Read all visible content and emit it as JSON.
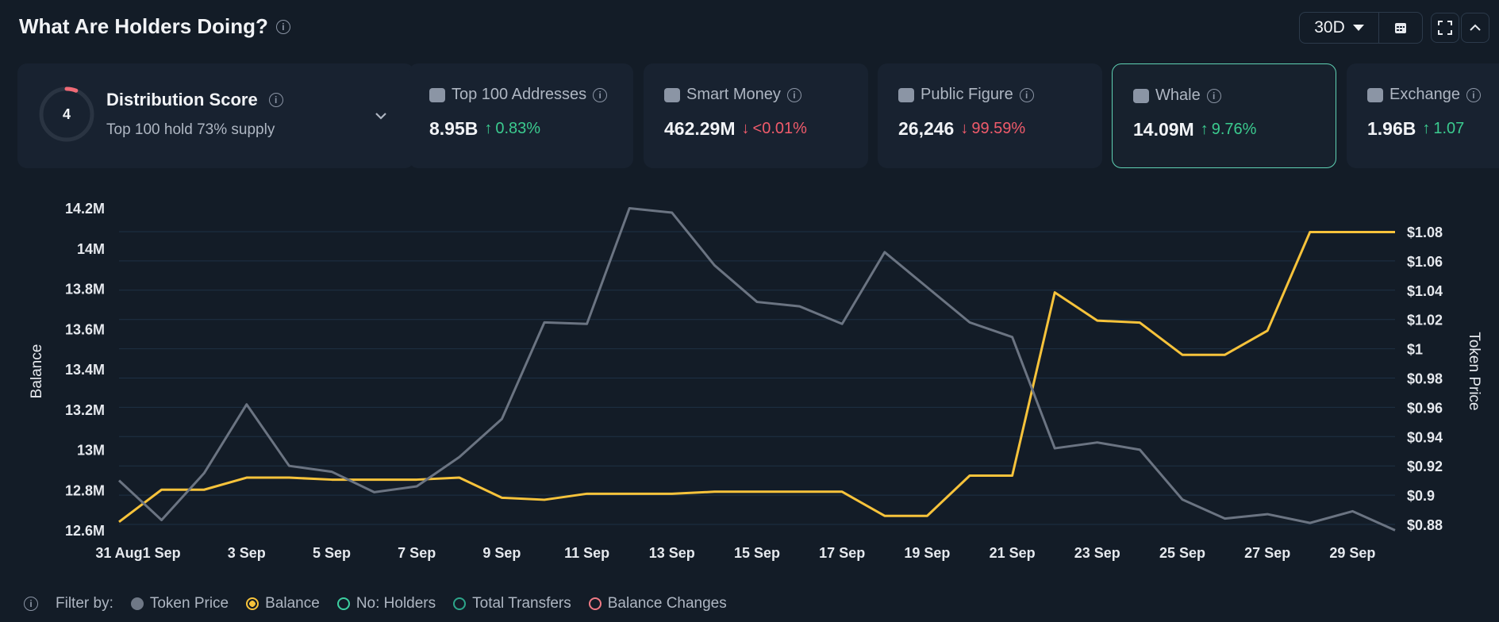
{
  "header": {
    "title": "What Are Holders Doing?"
  },
  "controls": {
    "period": "30D"
  },
  "distribution": {
    "score": "4",
    "score_fraction": 0.4,
    "title": "Distribution Score",
    "subtitle": "Top 100 hold 73% supply"
  },
  "cards": [
    {
      "label": "Top 100 Addresses",
      "value": "8.95B",
      "delta": "0.83%",
      "dir": "up",
      "icon": "cash-icon"
    },
    {
      "label": "Smart Money",
      "value": "462.29M",
      "delta": "<0.01%",
      "dir": "down",
      "icon": "sunglasses-icon"
    },
    {
      "label": "Public Figure",
      "value": "26,246",
      "delta": "99.59%",
      "dir": "down",
      "icon": "person-icon"
    },
    {
      "label": "Whale",
      "value": "14.09M",
      "delta": "9.76%",
      "dir": "up",
      "icon": "whale-icon"
    },
    {
      "label": "Exchange",
      "value": "1.96B",
      "delta": "1.07",
      "dir": "up",
      "icon": "bank-icon"
    }
  ],
  "legend": {
    "filter_label": "Filter by:",
    "items": [
      {
        "label": "Token Price",
        "color": "#6f7886",
        "style": "filled"
      },
      {
        "label": "Balance",
        "color": "#f7c33b",
        "style": "ring-filled"
      },
      {
        "label": "No: Holders",
        "color": "#3ccfa0",
        "style": "ring"
      },
      {
        "label": "Total Transfers",
        "color": "#2da58a",
        "style": "ring"
      },
      {
        "label": "Balance Changes",
        "color": "#f07a85",
        "style": "ring"
      }
    ]
  },
  "chart_data": {
    "type": "line",
    "x": [
      "31 Aug",
      "1 Sep",
      "2 Sep",
      "3 Sep",
      "4 Sep",
      "5 Sep",
      "6 Sep",
      "7 Sep",
      "8 Sep",
      "9 Sep",
      "10 Sep",
      "11 Sep",
      "12 Sep",
      "13 Sep",
      "14 Sep",
      "15 Sep",
      "16 Sep",
      "17 Sep",
      "18 Sep",
      "19 Sep",
      "20 Sep",
      "21 Sep",
      "22 Sep",
      "23 Sep",
      "24 Sep",
      "25 Sep",
      "26 Sep",
      "27 Sep",
      "28 Sep",
      "29 Sep",
      "30 Sep"
    ],
    "xtick_labels": [
      "31 Aug",
      "1 Sep",
      "3 Sep",
      "5 Sep",
      "7 Sep",
      "9 Sep",
      "11 Sep",
      "13 Sep",
      "15 Sep",
      "17 Sep",
      "19 Sep",
      "21 Sep",
      "23 Sep",
      "25 Sep",
      "27 Sep",
      "29 Sep"
    ],
    "series": [
      {
        "name": "Balance",
        "axis": "left",
        "color": "#f7c33b",
        "values": [
          12.64,
          12.8,
          12.8,
          12.86,
          12.86,
          12.85,
          12.85,
          12.85,
          12.86,
          12.76,
          12.75,
          12.78,
          12.78,
          12.78,
          12.79,
          12.79,
          12.79,
          12.79,
          12.67,
          12.67,
          12.87,
          12.87,
          13.78,
          13.64,
          13.63,
          13.47,
          13.47,
          13.59,
          14.08,
          14.08,
          14.08
        ]
      },
      {
        "name": "Token Price",
        "axis": "right",
        "color": "#6b7482",
        "values": [
          0.91,
          0.883,
          0.915,
          0.962,
          0.92,
          0.916,
          0.902,
          0.906,
          0.926,
          0.952,
          1.018,
          1.017,
          1.096,
          1.093,
          1.057,
          1.032,
          1.029,
          1.017,
          1.066,
          1.042,
          1.018,
          1.008,
          0.932,
          0.936,
          0.931,
          0.897,
          0.884,
          0.887,
          0.881,
          0.889,
          0.876
        ]
      }
    ],
    "ylabel": "Balance",
    "ylabel_right": "Token Price",
    "yticks_left": [
      "12.6M",
      "12.8M",
      "13M",
      "13.2M",
      "13.4M",
      "13.6M",
      "13.8M",
      "14M",
      "14.2M"
    ],
    "yticks_right": [
      "$0.88",
      "$0.9",
      "$0.92",
      "$0.94",
      "$0.96",
      "$0.98",
      "$1",
      "$1.02",
      "$1.04",
      "$1.06",
      "$1.08"
    ],
    "ylim_left": [
      12.6,
      14.2
    ],
    "ylim_right": [
      0.88,
      1.08
    ]
  }
}
